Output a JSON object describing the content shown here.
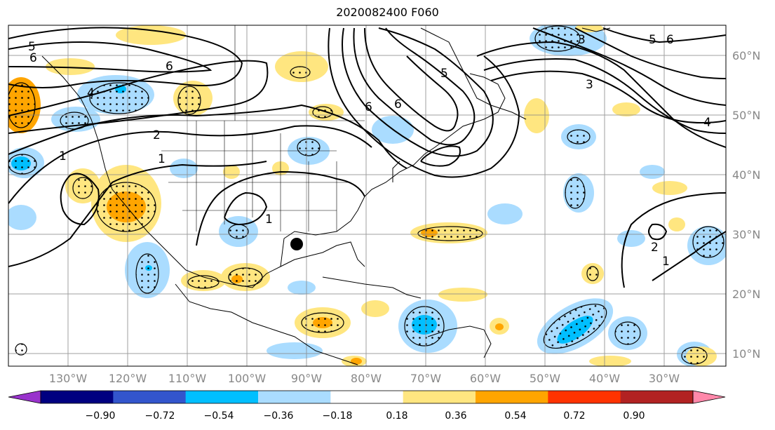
{
  "title": "2020082400 F060",
  "lon_labels": [
    "130°W",
    "120°W",
    "110°W",
    "100°W",
    "90°W",
    "80°W",
    "70°W",
    "60°W",
    "50°W",
    "40°W",
    "30°W"
  ],
  "lat_labels": [
    "60°N",
    "50°N",
    "40°N",
    "30°N",
    "20°N",
    "10°N"
  ],
  "colorbar": {
    "ticks": [
      "−0.90",
      "−0.72",
      "−0.54",
      "−0.36",
      "−0.18",
      "0.18",
      "0.36",
      "0.54",
      "0.72",
      "0.90"
    ],
    "colors": [
      "#9933cc",
      "#000080",
      "#3355cc",
      "#00bfff",
      "#aadcff",
      "#ffffff",
      "#ffe680",
      "#ffa500",
      "#ff3300",
      "#b22222",
      "#ff88aa"
    ]
  },
  "contour_labels": [
    "5",
    "6",
    "6",
    "4",
    "1",
    "2",
    "1",
    "1",
    "6",
    "5",
    "6",
    "3",
    "3",
    "5",
    "6",
    "4",
    "2",
    "1"
  ],
  "storm_marker": {
    "lon": "91°W",
    "lat": "28°N"
  }
}
